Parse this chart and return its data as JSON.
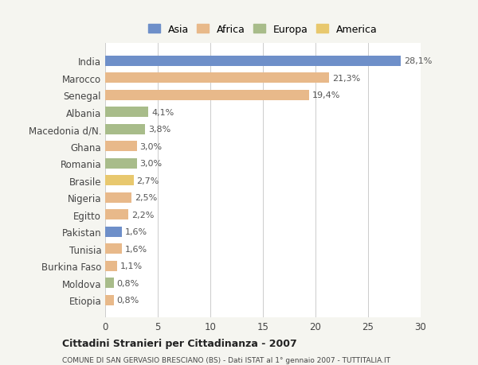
{
  "categories": [
    "India",
    "Marocco",
    "Senegal",
    "Albania",
    "Macedonia d/N.",
    "Ghana",
    "Romania",
    "Brasile",
    "Nigeria",
    "Egitto",
    "Pakistan",
    "Tunisia",
    "Burkina Faso",
    "Moldova",
    "Etiopia"
  ],
  "values": [
    28.1,
    21.3,
    19.4,
    4.1,
    3.8,
    3.0,
    3.0,
    2.7,
    2.5,
    2.2,
    1.6,
    1.6,
    1.1,
    0.8,
    0.8
  ],
  "labels": [
    "28,1%",
    "21,3%",
    "19,4%",
    "4,1%",
    "3,8%",
    "3,0%",
    "3,0%",
    "2,7%",
    "2,5%",
    "2,2%",
    "1,6%",
    "1,6%",
    "1,1%",
    "0,8%",
    "0,8%"
  ],
  "colors": [
    "#6e8fc9",
    "#e8b98a",
    "#e8b98a",
    "#a8bc8a",
    "#a8bc8a",
    "#e8b98a",
    "#a8bc8a",
    "#e8c86e",
    "#e8b98a",
    "#e8b98a",
    "#6e8fc9",
    "#e8b98a",
    "#e8b98a",
    "#a8bc8a",
    "#e8b98a"
  ],
  "legend_labels": [
    "Asia",
    "Africa",
    "Europa",
    "America"
  ],
  "legend_colors": [
    "#6e8fc9",
    "#e8b98a",
    "#a8bc8a",
    "#e8c86e"
  ],
  "title": "Cittadini Stranieri per Cittadinanza - 2007",
  "subtitle": "COMUNE DI SAN GERVASIO BRESCIANO (BS) - Dati ISTAT al 1° gennaio 2007 - TUTTITALIA.IT",
  "xlim": [
    0,
    30
  ],
  "xticks": [
    0,
    5,
    10,
    15,
    20,
    25,
    30
  ],
  "background_color": "#f5f5f0",
  "bar_background": "#ffffff",
  "grid_color": "#cccccc"
}
